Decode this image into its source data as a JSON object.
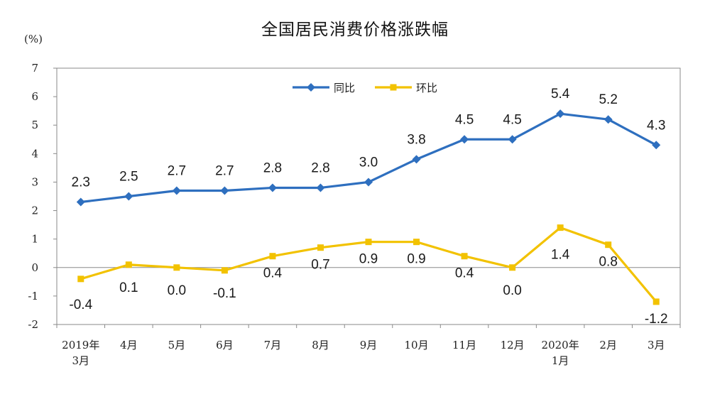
{
  "chart_data": {
    "type": "line",
    "title": "全国居民消费价格涨跌幅",
    "unit_label": "(%)",
    "ylim": [
      -2,
      7
    ],
    "yticks": [
      7,
      6,
      5,
      4,
      3,
      2,
      1,
      0,
      -1,
      -2
    ],
    "categories": [
      [
        "2019年",
        "3月"
      ],
      [
        "4月"
      ],
      [
        "5月"
      ],
      [
        "6月"
      ],
      [
        "7月"
      ],
      [
        "8月"
      ],
      [
        "9月"
      ],
      [
        "10月"
      ],
      [
        "11月"
      ],
      [
        "12月"
      ],
      [
        "2020年",
        "1月"
      ],
      [
        "2月"
      ],
      [
        "3月"
      ]
    ],
    "series": [
      {
        "name": "同比",
        "color": "#2e6fbf",
        "marker": "diamond",
        "values": [
          2.3,
          2.5,
          2.7,
          2.7,
          2.8,
          2.8,
          3.0,
          3.8,
          4.5,
          4.5,
          5.4,
          5.2,
          4.3
        ],
        "labels": [
          "2.3",
          "2.5",
          "2.7",
          "2.7",
          "2.8",
          "2.8",
          "3.0",
          "3.8",
          "4.5",
          "4.5",
          "5.4",
          "5.2",
          "4.3"
        ]
      },
      {
        "name": "环比",
        "color": "#f2c200",
        "marker": "square",
        "values": [
          -0.4,
          0.1,
          0.0,
          -0.1,
          0.4,
          0.7,
          0.9,
          0.9,
          0.4,
          0.0,
          1.4,
          0.8,
          -1.2
        ],
        "labels": [
          "-0.4",
          "0.1",
          "0.0",
          "-0.1",
          "0.4",
          "0.7",
          "0.9",
          "0.9",
          "0.4",
          "0.0",
          "1.4",
          "0.8",
          "-1.2"
        ]
      }
    ],
    "legend": "top-center",
    "grid": false
  }
}
